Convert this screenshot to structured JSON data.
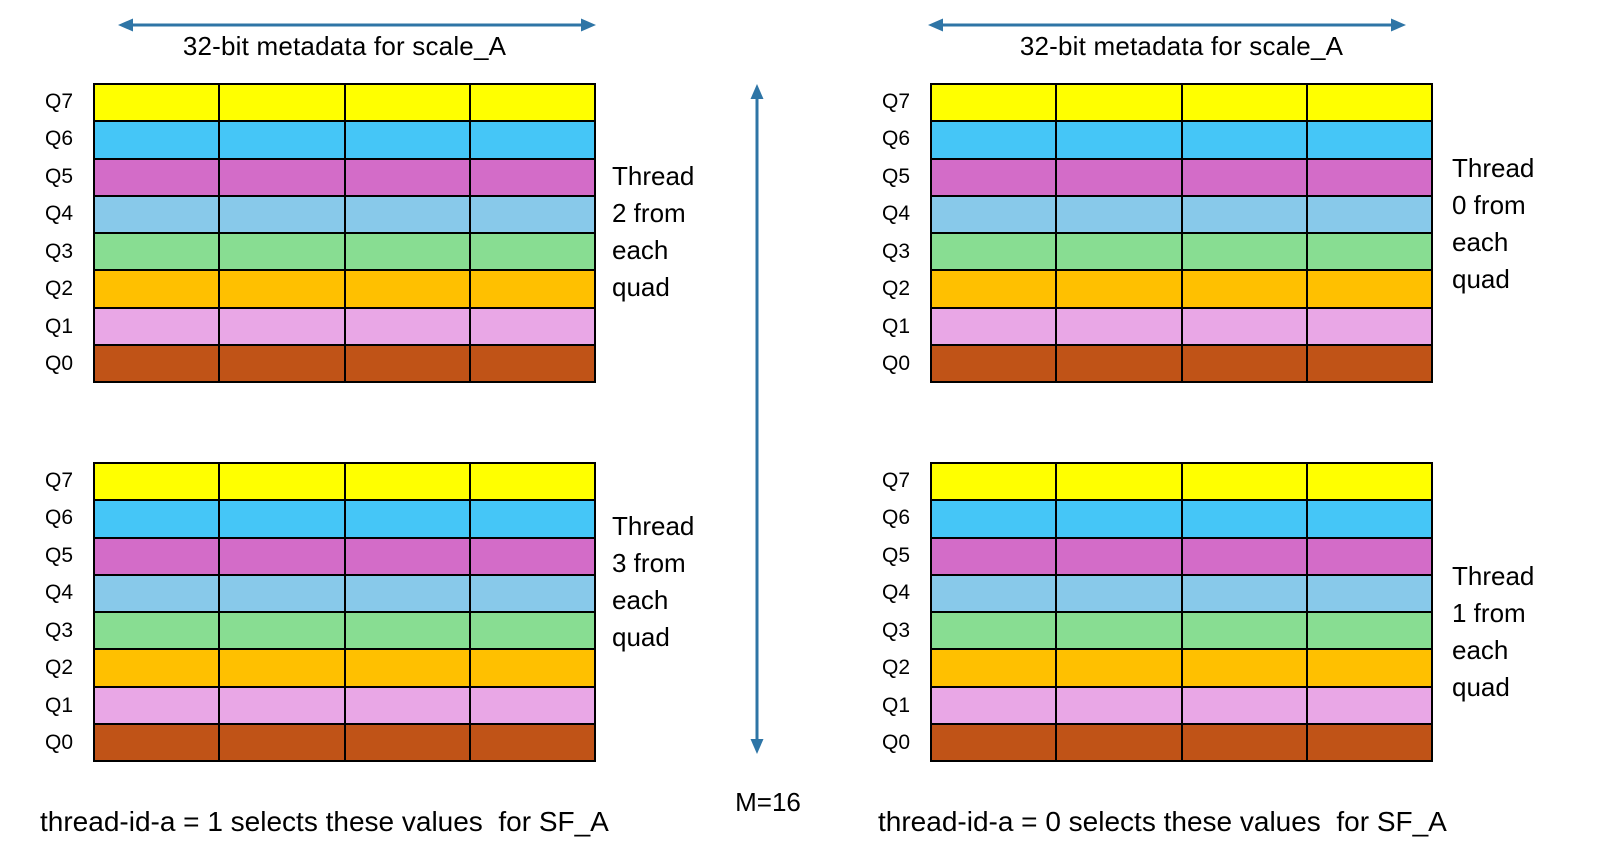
{
  "colors": {
    "arrow": "#2E75A6",
    "grid_border": "#000000",
    "row_colors": [
      "#FFFF00",
      "#45C6F7",
      "#D36CC8",
      "#88C9EA",
      "#88DD92",
      "#FFC000",
      "#E9A7E6",
      "#C05317"
    ]
  },
  "grid": {
    "row_labels": [
      "Q7",
      "Q6",
      "Q5",
      "Q4",
      "Q3",
      "Q2",
      "Q1",
      "Q0"
    ],
    "columns": 4,
    "rows": 8
  },
  "panels": [
    {
      "title": "32-bit metadata for scale_A",
      "grids": [
        {
          "thread_label": "Thread\n2 from\neach\nquad"
        },
        {
          "thread_label": "Thread\n3 from\neach\nquad"
        }
      ],
      "caption": "thread-id-a = 1 selects these values  for SF_A"
    },
    {
      "title": "32-bit metadata for scale_A",
      "grids": [
        {
          "thread_label": "Thread\n0 from\neach\nquad"
        },
        {
          "thread_label": "Thread\n1 from\neach\nquad"
        }
      ],
      "caption": "thread-id-a = 0 selects these values  for SF_A"
    }
  ],
  "center": {
    "m_label": "M=16"
  }
}
